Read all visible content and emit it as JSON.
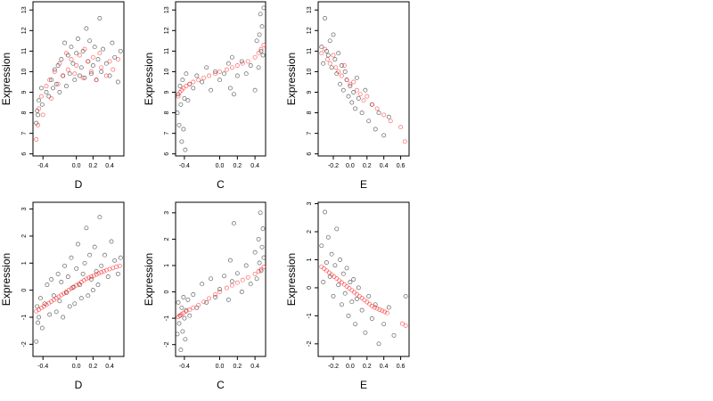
{
  "chart_data": [
    {
      "type": "scatter",
      "xlabel": "D",
      "ylabel": "Expression",
      "xlim": [
        -0.52,
        0.57
      ],
      "ylim": [
        5.9,
        13.4
      ],
      "xticks": [
        -0.4,
        0.0,
        0.2,
        0.4
      ],
      "xtick_labels": [
        "-0.4",
        "0.0",
        "0.2",
        "0.4"
      ],
      "yticks": [
        6,
        7,
        8,
        9,
        10,
        11,
        12,
        13
      ],
      "ytick_labels": [
        "6",
        "7",
        "8",
        "9",
        "10",
        "11",
        "12",
        "13"
      ],
      "grid": false,
      "series": [
        {
          "color": "#000000",
          "marker": "open-circle",
          "x": [
            -0.48,
            -0.47,
            -0.46,
            -0.45,
            -0.42,
            -0.41,
            -0.36,
            -0.33,
            -0.3,
            -0.28,
            -0.26,
            -0.24,
            -0.22,
            -0.2,
            -0.18,
            -0.16,
            -0.14,
            -0.12,
            -0.1,
            -0.08,
            -0.06,
            -0.04,
            -0.02,
            0.0,
            0.02,
            0.04,
            0.06,
            0.08,
            0.1,
            0.12,
            0.14,
            0.16,
            0.18,
            0.2,
            0.22,
            0.24,
            0.26,
            0.28,
            0.3,
            0.32,
            0.36,
            0.4,
            0.43,
            0.46,
            0.5,
            0.53
          ],
          "y": [
            7.5,
            8.1,
            7.9,
            8.6,
            9.2,
            8.4,
            9.0,
            8.8,
            9.6,
            9.2,
            10.1,
            9.4,
            10.3,
            9.0,
            10.6,
            9.8,
            11.4,
            9.3,
            10.8,
            9.9,
            11.2,
            10.4,
            9.6,
            10.9,
            11.6,
            9.8,
            10.2,
            11.0,
            9.7,
            12.1,
            10.5,
            11.5,
            9.9,
            10.3,
            11.2,
            9.6,
            10.6,
            12.6,
            10.0,
            11.1,
            10.4,
            9.8,
            11.4,
            10.7,
            9.5,
            11.0
          ]
        },
        {
          "color": "#ff0000",
          "marker": "open-circle",
          "x": [
            -0.48,
            -0.46,
            -0.45,
            -0.42,
            -0.4,
            -0.36,
            -0.32,
            -0.3,
            -0.26,
            -0.22,
            -0.2,
            -0.16,
            -0.12,
            -0.1,
            -0.06,
            -0.02,
            0.0,
            0.04,
            0.08,
            0.1,
            0.14,
            0.18,
            0.2,
            0.24,
            0.28,
            0.3,
            0.36,
            0.4,
            0.44,
            0.5
          ],
          "y": [
            6.7,
            7.4,
            8.2,
            8.8,
            7.9,
            9.3,
            9.6,
            8.7,
            10.0,
            9.4,
            10.4,
            9.8,
            10.9,
            10.1,
            10.6,
            9.9,
            10.3,
            10.8,
            9.7,
            11.1,
            10.5,
            10.0,
            10.7,
            9.6,
            10.9,
            10.2,
            9.8,
            10.5,
            10.1,
            10.6
          ]
        }
      ]
    },
    {
      "type": "scatter",
      "xlabel": "C",
      "ylabel": "Expression",
      "xlim": [
        -0.5,
        0.52
      ],
      "ylim": [
        5.9,
        13.4
      ],
      "xticks": [
        -0.4,
        0.0,
        0.2,
        0.4
      ],
      "xtick_labels": [
        "-0.4",
        "0.0",
        "0.2",
        "0.4"
      ],
      "yticks": [
        6,
        7,
        8,
        9,
        10,
        11,
        12,
        13
      ],
      "ytick_labels": [
        "6",
        "7",
        "8",
        "9",
        "10",
        "11",
        "12",
        "13"
      ],
      "grid": false,
      "series": [
        {
          "color": "#000000",
          "marker": "open-circle",
          "x": [
            -0.48,
            -0.47,
            -0.46,
            -0.45,
            -0.44,
            -0.43,
            -0.42,
            -0.41,
            -0.4,
            -0.39,
            -0.38,
            -0.36,
            -0.34,
            -0.3,
            -0.26,
            -0.2,
            -0.15,
            -0.1,
            -0.05,
            0.0,
            0.05,
            0.1,
            0.12,
            0.14,
            0.16,
            0.2,
            0.25,
            0.3,
            0.35,
            0.4,
            0.42,
            0.44,
            0.45,
            0.46,
            0.47,
            0.48,
            0.49,
            0.5
          ],
          "y": [
            8.0,
            8.9,
            7.4,
            9.3,
            8.4,
            6.6,
            9.6,
            7.2,
            8.7,
            6.2,
            9.9,
            8.6,
            9.4,
            9.2,
            9.8,
            9.5,
            10.2,
            9.1,
            10.0,
            9.6,
            9.9,
            10.4,
            9.2,
            10.7,
            8.9,
            9.8,
            10.5,
            9.9,
            10.3,
            9.1,
            11.5,
            10.2,
            11.8,
            12.8,
            11.0,
            12.2,
            10.8,
            13.1
          ]
        },
        {
          "color": "#ff0000",
          "marker": "open-circle",
          "x": [
            -0.47,
            -0.45,
            -0.43,
            -0.41,
            -0.38,
            -0.34,
            -0.3,
            -0.24,
            -0.18,
            -0.12,
            -0.05,
            0.0,
            0.08,
            0.14,
            0.2,
            0.26,
            0.32,
            0.4,
            0.44,
            0.47,
            0.5
          ],
          "y": [
            8.8,
            9.0,
            9.1,
            9.2,
            9.3,
            9.4,
            9.5,
            9.6,
            9.7,
            9.8,
            9.9,
            10.0,
            10.1,
            10.2,
            10.3,
            10.4,
            10.5,
            10.7,
            10.9,
            11.1,
            11.3
          ]
        }
      ]
    },
    {
      "type": "scatter",
      "xlabel": "E",
      "ylabel": "Expression",
      "xlim": [
        -0.38,
        0.7
      ],
      "ylim": [
        5.9,
        13.4
      ],
      "xticks": [
        -0.2,
        0.0,
        0.2,
        0.4,
        0.6
      ],
      "xtick_labels": [
        "-0.2",
        "0.0",
        "0.2",
        "0.4",
        "0.6"
      ],
      "yticks": [
        6,
        7,
        8,
        9,
        10,
        11,
        12,
        13
      ],
      "ytick_labels": [
        "6",
        "7",
        "8",
        "9",
        "10",
        "11",
        "12",
        "13"
      ],
      "grid": false,
      "series": [
        {
          "color": "#000000",
          "marker": "open-circle",
          "x": [
            -0.34,
            -0.32,
            -0.3,
            -0.28,
            -0.26,
            -0.24,
            -0.22,
            -0.2,
            -0.18,
            -0.16,
            -0.14,
            -0.12,
            -0.1,
            -0.08,
            -0.06,
            -0.04,
            -0.02,
            0.0,
            0.02,
            0.04,
            0.06,
            0.08,
            0.1,
            0.14,
            0.18,
            0.22,
            0.26,
            0.3,
            0.34,
            0.4,
            0.46
          ],
          "y": [
            11.2,
            10.4,
            12.6,
            11.0,
            10.8,
            11.5,
            10.2,
            11.8,
            10.6,
            9.9,
            10.9,
            9.4,
            10.3,
            9.1,
            10.0,
            9.6,
            8.8,
            9.3,
            8.5,
            9.0,
            8.2,
            9.7,
            8.7,
            8.0,
            9.1,
            7.6,
            8.4,
            7.2,
            8.0,
            6.9,
            7.8
          ]
        },
        {
          "color": "#ff0000",
          "marker": "open-circle",
          "x": [
            -0.34,
            -0.3,
            -0.27,
            -0.24,
            -0.2,
            -0.17,
            -0.14,
            -0.1,
            -0.07,
            -0.04,
            0.0,
            0.04,
            0.08,
            0.12,
            0.16,
            0.2,
            0.26,
            0.32,
            0.4,
            0.48,
            0.6,
            0.65
          ],
          "y": [
            10.9,
            11.1,
            10.6,
            10.4,
            10.8,
            10.2,
            10.0,
            9.8,
            10.3,
            9.6,
            9.4,
            9.5,
            9.1,
            8.9,
            8.6,
            8.8,
            8.4,
            8.2,
            7.9,
            7.6,
            7.3,
            6.6
          ]
        }
      ]
    },
    {
      "type": "scatter",
      "xlabel": "D",
      "ylabel": "Expression",
      "xlim": [
        -0.52,
        0.57
      ],
      "ylim": [
        -2.45,
        3.25
      ],
      "xticks": [
        -0.4,
        0.0,
        0.2,
        0.4
      ],
      "xtick_labels": [
        "-0.4",
        "0.0",
        "0.2",
        "0.4"
      ],
      "yticks": [
        -2,
        -1,
        0,
        1,
        2,
        3
      ],
      "ytick_labels": [
        "-2",
        "-1",
        "0",
        "1",
        "2",
        "3"
      ],
      "grid": false,
      "series": [
        {
          "color": "#000000",
          "marker": "open-circle",
          "x": [
            -0.48,
            -0.47,
            -0.46,
            -0.45,
            -0.43,
            -0.41,
            -0.38,
            -0.35,
            -0.32,
            -0.3,
            -0.27,
            -0.24,
            -0.22,
            -0.2,
            -0.18,
            -0.16,
            -0.14,
            -0.12,
            -0.1,
            -0.08,
            -0.06,
            -0.04,
            -0.02,
            0.0,
            0.02,
            0.04,
            0.06,
            0.08,
            0.1,
            0.12,
            0.14,
            0.16,
            0.18,
            0.2,
            0.22,
            0.24,
            0.26,
            0.28,
            0.3,
            0.34,
            0.38,
            0.42,
            0.46,
            0.5,
            0.53
          ],
          "y": [
            -1.9,
            -0.6,
            -1.2,
            -1.0,
            -0.3,
            -1.4,
            -0.5,
            0.2,
            -0.9,
            0.4,
            -0.2,
            -0.8,
            0.6,
            -0.4,
            0.3,
            -1.0,
            0.9,
            -0.1,
            0.5,
            -0.6,
            1.2,
            0.1,
            -0.5,
            0.8,
            1.7,
            0.2,
            -0.3,
            0.6,
            1.0,
            2.3,
            -0.2,
            1.3,
            0.4,
            0.0,
            1.6,
            0.7,
            0.2,
            2.7,
            0.9,
            1.3,
            0.5,
            1.8,
            1.1,
            0.6,
            1.2
          ]
        },
        {
          "color": "#ff0000",
          "marker": "open-circle",
          "x": [
            -0.48,
            -0.45,
            -0.42,
            -0.39,
            -0.36,
            -0.33,
            -0.3,
            -0.27,
            -0.24,
            -0.21,
            -0.18,
            -0.15,
            -0.12,
            -0.09,
            -0.06,
            -0.03,
            0.0,
            0.03,
            0.06,
            0.09,
            0.12,
            0.15,
            0.18,
            0.21,
            0.24,
            0.27,
            0.3,
            0.33,
            0.36,
            0.4,
            0.44,
            0.48,
            0.52
          ],
          "y": [
            -0.78,
            -0.72,
            -0.66,
            -0.6,
            -0.54,
            -0.48,
            -0.42,
            -0.36,
            -0.3,
            -0.24,
            -0.18,
            -0.12,
            -0.06,
            0.0,
            0.06,
            0.12,
            0.18,
            0.24,
            0.3,
            0.36,
            0.42,
            0.46,
            0.5,
            0.54,
            0.58,
            0.62,
            0.66,
            0.7,
            0.74,
            0.78,
            0.82,
            0.86,
            0.9
          ]
        }
      ]
    },
    {
      "type": "scatter",
      "xlabel": "C",
      "ylabel": "Expression",
      "xlim": [
        -0.5,
        0.52
      ],
      "ylim": [
        -2.45,
        3.4
      ],
      "xticks": [
        -0.4,
        0.0,
        0.2,
        0.4
      ],
      "xtick_labels": [
        "-0.4",
        "0.0",
        "0.2",
        "0.4"
      ],
      "yticks": [
        -2,
        -1,
        0,
        1,
        2,
        3
      ],
      "ytick_labels": [
        "-2",
        "-1",
        "0",
        "1",
        "2",
        "3"
      ],
      "grid": false,
      "series": [
        {
          "color": "#000000",
          "marker": "open-circle",
          "x": [
            -0.48,
            -0.47,
            -0.46,
            -0.45,
            -0.44,
            -0.43,
            -0.42,
            -0.41,
            -0.4,
            -0.39,
            -0.38,
            -0.36,
            -0.34,
            -0.3,
            -0.26,
            -0.2,
            -0.15,
            -0.1,
            -0.05,
            0.0,
            0.05,
            0.1,
            0.12,
            0.14,
            0.16,
            0.2,
            0.25,
            0.3,
            0.35,
            0.4,
            0.42,
            0.44,
            0.45,
            0.46,
            0.47,
            0.48,
            0.49,
            0.5
          ],
          "y": [
            -1.6,
            -0.4,
            -1.2,
            -0.9,
            -2.2,
            -0.6,
            -1.5,
            -0.2,
            -1.0,
            -1.8,
            -0.7,
            -0.3,
            -0.9,
            -0.1,
            -0.6,
            0.3,
            -0.4,
            0.5,
            -0.2,
            0.1,
            0.6,
            -0.3,
            1.2,
            0.4,
            2.6,
            0.7,
            0.0,
            1.0,
            0.3,
            1.5,
            0.5,
            2.0,
            1.1,
            3.0,
            0.8,
            1.7,
            2.4,
            1.3
          ]
        },
        {
          "color": "#ff0000",
          "marker": "open-circle",
          "x": [
            -0.47,
            -0.45,
            -0.43,
            -0.41,
            -0.38,
            -0.34,
            -0.3,
            -0.24,
            -0.18,
            -0.12,
            -0.05,
            0.0,
            0.08,
            0.14,
            0.2,
            0.26,
            0.32,
            0.4,
            0.44,
            0.47,
            0.5
          ],
          "y": [
            -0.95,
            -0.9,
            -0.85,
            -0.8,
            -0.75,
            -0.68,
            -0.6,
            -0.5,
            -0.38,
            -0.25,
            -0.1,
            0.0,
            0.15,
            0.25,
            0.35,
            0.45,
            0.55,
            0.68,
            0.78,
            0.86,
            0.95
          ]
        }
      ]
    },
    {
      "type": "scatter",
      "xlabel": "E",
      "ylabel": "Expression",
      "xlim": [
        -0.38,
        0.7
      ],
      "ylim": [
        -2.45,
        3.05
      ],
      "xticks": [
        -0.2,
        0.0,
        0.2,
        0.4,
        0.6
      ],
      "xtick_labels": [
        "-0.2",
        "0.0",
        "0.2",
        "0.4",
        "0.6"
      ],
      "yticks": [
        -2,
        -1,
        0,
        1,
        2,
        3
      ],
      "ytick_labels": [
        "-2",
        "-1",
        "0",
        "1",
        "2",
        "3"
      ],
      "grid": false,
      "series": [
        {
          "color": "#000000",
          "marker": "open-circle",
          "x": [
            -0.34,
            -0.32,
            -0.3,
            -0.28,
            -0.26,
            -0.24,
            -0.22,
            -0.2,
            -0.18,
            -0.16,
            -0.14,
            -0.12,
            -0.1,
            -0.08,
            -0.06,
            -0.04,
            -0.02,
            0.0,
            0.02,
            0.04,
            0.06,
            0.08,
            0.1,
            0.14,
            0.18,
            0.22,
            0.26,
            0.3,
            0.34,
            0.4,
            0.46,
            0.52,
            0.66
          ],
          "y": [
            1.5,
            0.2,
            2.7,
            0.9,
            1.8,
            0.4,
            1.2,
            -0.3,
            0.8,
            2.1,
            0.1,
            1.0,
            -0.6,
            0.5,
            -0.2,
            0.7,
            -1.0,
            0.2,
            -0.5,
            0.3,
            -1.3,
            -0.4,
            0.0,
            -0.8,
            -1.6,
            -0.3,
            -1.1,
            -0.6,
            -2.0,
            -1.3,
            -0.7,
            -1.7,
            -0.3
          ]
        },
        {
          "color": "#ff0000",
          "marker": "open-circle",
          "x": [
            -0.34,
            -0.31,
            -0.28,
            -0.25,
            -0.22,
            -0.19,
            -0.16,
            -0.13,
            -0.1,
            -0.07,
            -0.04,
            -0.01,
            0.02,
            0.05,
            0.08,
            0.11,
            0.14,
            0.17,
            0.2,
            0.23,
            0.26,
            0.29,
            0.32,
            0.35,
            0.38,
            0.41,
            0.44,
            0.62,
            0.66
          ],
          "y": [
            0.75,
            0.68,
            0.61,
            0.54,
            0.47,
            0.4,
            0.33,
            0.26,
            0.19,
            0.12,
            0.05,
            -0.02,
            -0.09,
            -0.16,
            -0.23,
            -0.3,
            -0.37,
            -0.44,
            -0.51,
            -0.58,
            -0.65,
            -0.7,
            -0.74,
            -0.78,
            -0.82,
            -0.86,
            -0.9,
            -1.28,
            -1.35
          ]
        }
      ]
    }
  ]
}
